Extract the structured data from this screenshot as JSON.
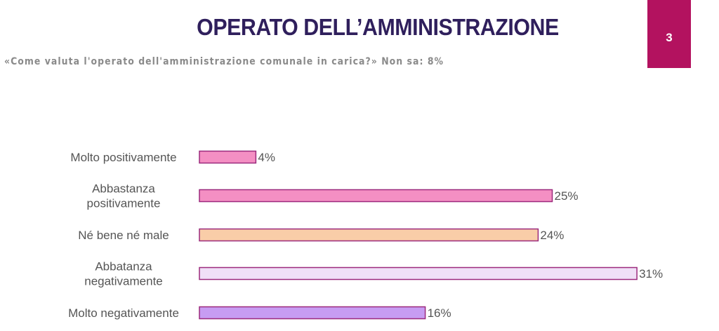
{
  "header": {
    "title": "OPERATO DELL’AMMINISTRAZIONE",
    "page_number": "3",
    "subtitle": "«Come valuta l'operato dell'amministrazione comunale in carica?» Non sa:  8%"
  },
  "colors": {
    "title": "#2f1f5c",
    "badge": "#b3125f",
    "bar_outline": "#9c2a7d"
  },
  "chart_data": {
    "type": "bar",
    "orientation": "horizontal",
    "title": "",
    "xlabel": "",
    "ylabel": "",
    "categories": [
      [
        "Molto positivamente"
      ],
      [
        "Abbastanza",
        "positivamente"
      ],
      [
        "Né bene né male"
      ],
      [
        "Abbatanza",
        "negativamente"
      ],
      [
        "Molto negativamente"
      ]
    ],
    "values": [
      4,
      25,
      24,
      31,
      16
    ],
    "value_labels": [
      "4%",
      "25%",
      "24%",
      "31%",
      "16%"
    ],
    "unit": "%",
    "xlim": [
      0,
      31
    ],
    "colors": [
      "#f48fc3",
      "#f48fc3",
      "#f9cda8",
      "#f0e0f7",
      "#c79cf2"
    ],
    "grid": false,
    "legend": "none"
  }
}
